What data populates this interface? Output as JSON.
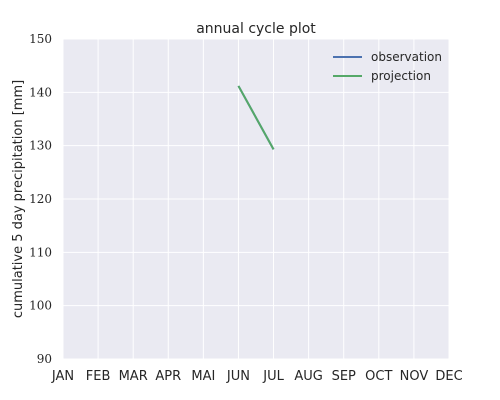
{
  "chart_data": {
    "type": "line",
    "title": "annual cycle plot",
    "xlabel": "",
    "ylabel": "cumulative 5 day precipitation [mm]",
    "categories": [
      "JAN",
      "FEB",
      "MAR",
      "APR",
      "MAI",
      "JUN",
      "JUL",
      "AUG",
      "SEP",
      "OCT",
      "NOV",
      "DEC"
    ],
    "yticks": [
      90,
      100,
      110,
      120,
      130,
      140,
      150
    ],
    "ylim": [
      90,
      150
    ],
    "grid": true,
    "legend_position": "top-right",
    "series": [
      {
        "name": "observation",
        "color": "#4c72b0",
        "points": [
          {
            "x": "JUN",
            "y": 141.2
          },
          {
            "x": "JUL",
            "y": 129.3
          }
        ]
      },
      {
        "name": "projection",
        "color": "#55a868",
        "points": [
          {
            "x": "JUN",
            "y": 141.2
          },
          {
            "x": "JUL",
            "y": 129.3
          }
        ]
      }
    ]
  }
}
